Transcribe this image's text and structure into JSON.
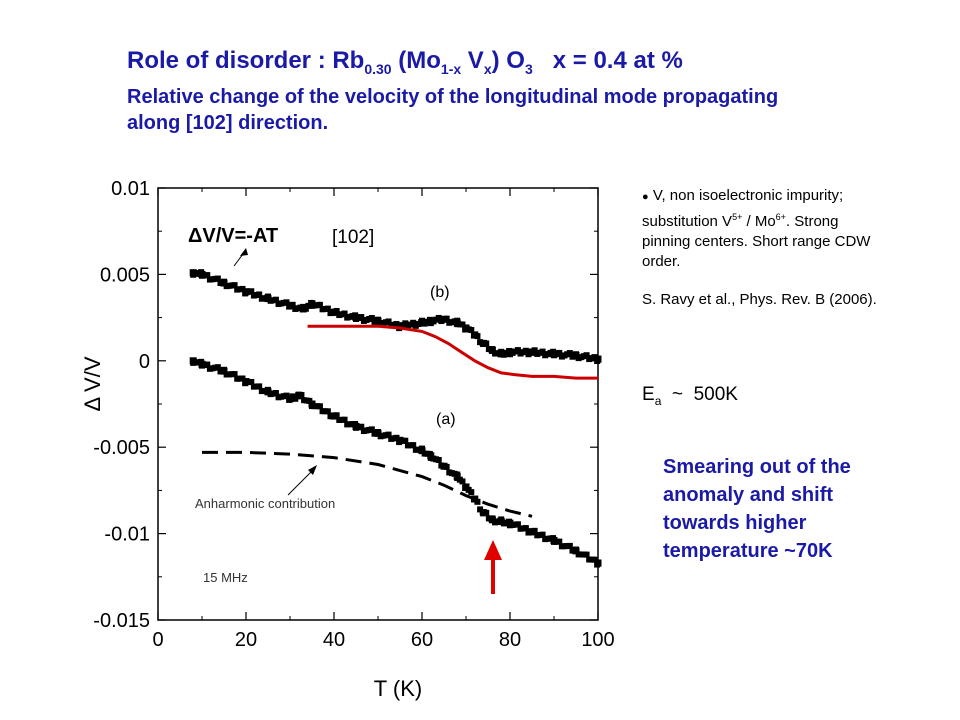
{
  "title": {
    "prefix": "Role of disorder : Rb",
    "sub1": "0.30",
    "mid1": " (Mo",
    "sub2": "1-x",
    "mid2": " V",
    "sub3": "x",
    "mid3": ") O",
    "sub4": "3",
    "suffix": "   x = 0.4 at %",
    "line2": "Relative change of the velocity of the longitudinal mode  propagating",
    "line3": "along  [102] direction."
  },
  "notes": {
    "impurity": [
      "V, non isoelectronic impurity; substitution V",
      "5+",
      " / Mo",
      "6+",
      ". Strong pinning centers.  Short range CDW order."
    ],
    "reference": "S. Ravy et al., Phys. Rev. B (2006).",
    "activation": [
      "E",
      "a",
      "  ~  500K"
    ],
    "smearing": "Smearing out of the anomaly and shift towards higher temperature ~70K"
  },
  "colors": {
    "title": "#1a1aa6",
    "fit_curve": "#cc0000",
    "data": "#000000",
    "arrow": "#e00000"
  },
  "chart_data": {
    "type": "scatter",
    "xlabel": "T  (K)",
    "ylabel": "Δ V/V",
    "xlim": [
      0,
      100
    ],
    "ylim": [
      -0.015,
      0.01
    ],
    "xticks": [
      0,
      20,
      40,
      60,
      80,
      100
    ],
    "yticks": [
      0.01,
      0.005,
      0,
      -0.005,
      -0.01,
      -0.015
    ],
    "ytick_labels": [
      "0.01",
      "0.005",
      "0",
      "-0.005",
      "-0.01",
      "-0.015"
    ],
    "annotations": {
      "formula": "ΔV/V=-AT",
      "direction": "[102]",
      "label_b": "(b)",
      "label_a": "(a)",
      "anharmonic": "Anharmonic contribution",
      "frequency": "15 MHz"
    },
    "series": [
      {
        "id": "b",
        "style": "markers",
        "x": [
          8,
          10,
          15,
          20,
          25,
          30,
          33,
          35,
          40,
          45,
          50,
          55,
          60,
          62,
          65,
          68,
          70,
          72,
          74,
          76,
          78,
          80,
          85,
          90,
          95,
          100
        ],
        "y": [
          0.0051,
          0.005,
          0.0045,
          0.004,
          0.0036,
          0.0032,
          0.003,
          0.0033,
          0.0028,
          0.0025,
          0.0023,
          0.002,
          0.0022,
          0.0023,
          0.0024,
          0.0022,
          0.0019,
          0.0015,
          0.001,
          0.0006,
          0.0004,
          0.0005,
          0.0005,
          0.0004,
          0.0003,
          0.0001
        ]
      },
      {
        "id": "a",
        "style": "markers",
        "x": [
          8,
          10,
          15,
          20,
          25,
          30,
          32,
          35,
          40,
          45,
          50,
          55,
          60,
          62,
          65,
          68,
          70,
          72,
          74,
          76,
          78,
          80,
          85,
          90,
          95,
          100
        ],
        "y": [
          0.0,
          -0.0002,
          -0.0006,
          -0.0012,
          -0.0018,
          -0.0022,
          -0.002,
          -0.0025,
          -0.0032,
          -0.0038,
          -0.0042,
          -0.0046,
          -0.0052,
          -0.0055,
          -0.0061,
          -0.0067,
          -0.0073,
          -0.008,
          -0.0088,
          -0.0092,
          -0.0093,
          -0.0094,
          -0.0099,
          -0.0104,
          -0.011,
          -0.0117
        ]
      },
      {
        "id": "fit",
        "style": "line",
        "x": [
          34,
          40,
          45,
          50,
          55,
          60,
          63,
          66,
          69,
          72,
          75,
          78,
          81,
          85,
          90,
          95,
          100
        ],
        "y": [
          0.002,
          0.002,
          0.002,
          0.002,
          0.0019,
          0.0017,
          0.0014,
          0.001,
          0.0005,
          0.0,
          -0.0004,
          -0.0007,
          -0.0008,
          -0.0009,
          -0.0009,
          -0.001,
          -0.001
        ]
      },
      {
        "id": "anharmonic",
        "style": "dashed",
        "x": [
          10,
          20,
          30,
          40,
          50,
          60,
          65,
          70,
          75,
          80,
          85
        ],
        "y": [
          -0.0053,
          -0.0053,
          -0.0054,
          -0.0056,
          -0.006,
          -0.0067,
          -0.0072,
          -0.0078,
          -0.0083,
          -0.0087,
          -0.009
        ]
      }
    ]
  }
}
